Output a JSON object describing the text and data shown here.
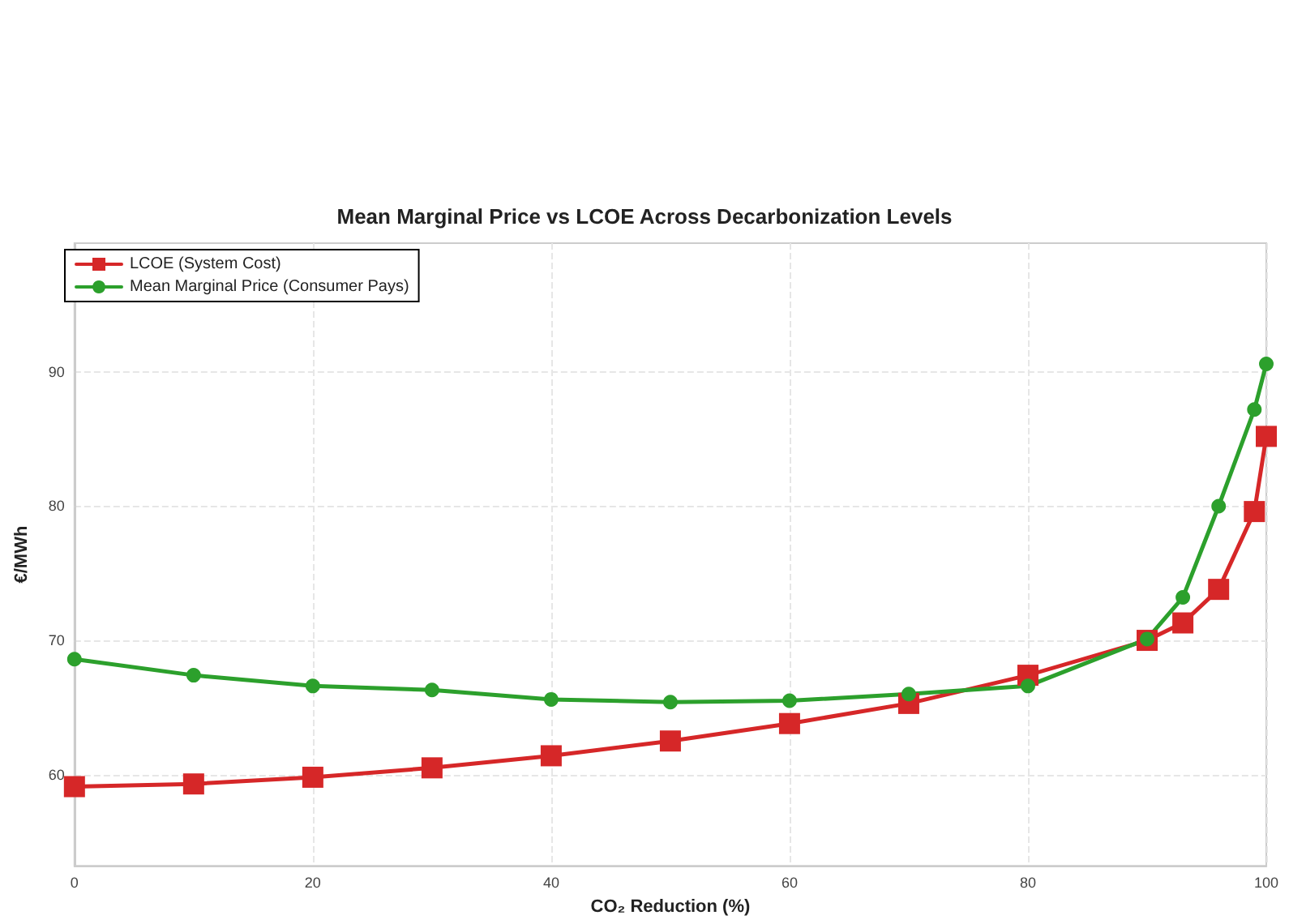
{
  "chart_data": {
    "type": "line",
    "title": "Mean Marginal Price vs LCOE Across Decarbonization Levels",
    "xlabel": "CO₂ Reduction (%)",
    "ylabel": "€/MWh",
    "x": [
      0,
      10,
      20,
      30,
      40,
      50,
      60,
      70,
      80,
      90,
      93,
      96,
      99,
      100
    ],
    "series": [
      {
        "name": "LCOE (System Cost)",
        "color": "#d62728",
        "marker": "square",
        "values": [
          59.1,
          59.3,
          59.8,
          60.5,
          61.4,
          62.5,
          63.8,
          65.3,
          67.4,
          70.0,
          71.3,
          73.8,
          79.6,
          85.2
        ]
      },
      {
        "name": "Mean Marginal Price (Consumer Pays)",
        "color": "#2ca02c",
        "marker": "circle",
        "values": [
          68.6,
          67.4,
          66.6,
          66.3,
          65.6,
          65.4,
          65.5,
          66.0,
          66.6,
          70.1,
          73.2,
          80.0,
          87.2,
          90.6
        ]
      }
    ],
    "xlim": [
      0,
      100
    ],
    "xticks": [
      0,
      20,
      40,
      60,
      80,
      100
    ],
    "ylim": [
      53.2,
      99.6
    ],
    "yticks": [
      60,
      70,
      80,
      90
    ],
    "grid": true,
    "legend": "top left",
    "line_style": "solid"
  }
}
